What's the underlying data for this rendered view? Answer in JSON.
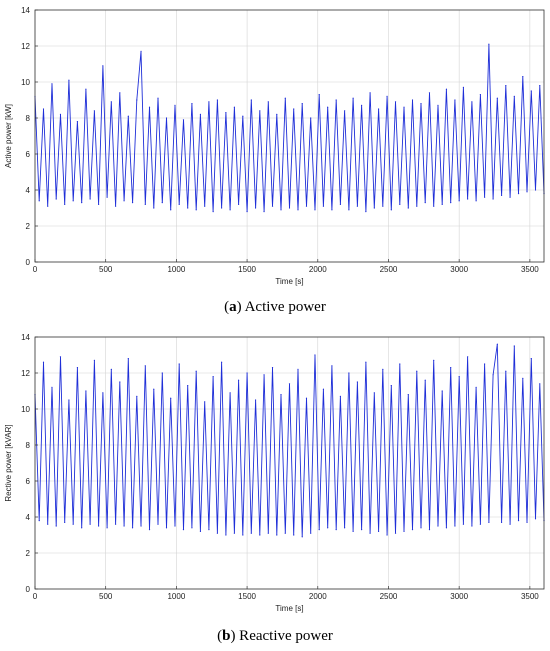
{
  "figure": {
    "caption_a": {
      "open": "(",
      "tag": "a",
      "close": ") Active power"
    },
    "caption_b": {
      "open": "(",
      "tag": "b",
      "close": ") Reactive power"
    }
  },
  "chart_data": [
    {
      "type": "line",
      "title": "",
      "xlabel": "Time [s]",
      "ylabel": "Active power [kW]",
      "xlim": [
        0,
        3600
      ],
      "ylim": [
        0,
        14
      ],
      "xticks": [
        0,
        500,
        1000,
        1500,
        2000,
        2500,
        3000,
        3500
      ],
      "yticks": [
        0,
        2,
        4,
        6,
        8,
        10,
        12,
        14
      ],
      "grid": true,
      "legend": "none",
      "color": "#1f2fd8",
      "series": [
        {
          "x": [
            0,
            30,
            60,
            90,
            120,
            150,
            180,
            210,
            240,
            270,
            300,
            330,
            360,
            390,
            420,
            450,
            480,
            510,
            540,
            570,
            600,
            630,
            660,
            690,
            720,
            750,
            780,
            810,
            840,
            870,
            900,
            930,
            960,
            990,
            1020,
            1050,
            1080,
            1110,
            1140,
            1170,
            1200,
            1230,
            1260,
            1290,
            1320,
            1350,
            1380,
            1410,
            1440,
            1470,
            1500,
            1530,
            1560,
            1590,
            1620,
            1650,
            1680,
            1710,
            1740,
            1770,
            1800,
            1830,
            1860,
            1890,
            1920,
            1950,
            1980,
            2010,
            2040,
            2070,
            2100,
            2130,
            2160,
            2190,
            2220,
            2250,
            2280,
            2310,
            2340,
            2370,
            2400,
            2430,
            2460,
            2490,
            2520,
            2550,
            2580,
            2610,
            2640,
            2670,
            2700,
            2730,
            2760,
            2790,
            2820,
            2850,
            2880,
            2910,
            2940,
            2970,
            3000,
            3030,
            3060,
            3090,
            3120,
            3150,
            3180,
            3210,
            3240,
            3270,
            3300,
            3330,
            3360,
            3390,
            3420,
            3450,
            3480,
            3510,
            3540,
            3570,
            3600
          ],
          "y": [
            9.2,
            3.4,
            8.5,
            3.1,
            9.9,
            3.5,
            8.2,
            3.2,
            10.1,
            3.4,
            7.8,
            3.3,
            9.6,
            3.5,
            8.4,
            3.2,
            10.9,
            3.6,
            8.9,
            3.1,
            9.4,
            3.4,
            8.1,
            3.3,
            9.0,
            11.7,
            3.2,
            8.6,
            3.0,
            9.1,
            3.3,
            8.0,
            2.9,
            8.7,
            3.2,
            7.9,
            3.0,
            8.8,
            2.9,
            8.2,
            3.1,
            8.9,
            2.8,
            9.0,
            3.0,
            8.3,
            2.9,
            8.6,
            3.2,
            8.1,
            2.8,
            9.0,
            3.0,
            8.4,
            2.8,
            8.9,
            3.1,
            8.2,
            2.9,
            9.1,
            3.0,
            8.5,
            2.9,
            8.8,
            3.1,
            8.0,
            2.9,
            9.3,
            3.1,
            8.6,
            2.9,
            9.0,
            3.2,
            8.4,
            2.9,
            9.1,
            3.1,
            8.7,
            2.8,
            9.4,
            3.0,
            8.5,
            3.1,
            9.2,
            2.9,
            8.9,
            3.2,
            8.6,
            3.0,
            9.0,
            3.1,
            8.8,
            3.3,
            9.4,
            3.1,
            8.7,
            3.2,
            9.6,
            3.3,
            9.0,
            3.4,
            9.7,
            3.5,
            8.9,
            3.4,
            9.3,
            3.6,
            12.1,
            3.5,
            9.1,
            3.7,
            9.8,
            3.6,
            9.2,
            3.8,
            10.3,
            3.9,
            9.5,
            4.0,
            9.8,
            3.8
          ]
        }
      ]
    },
    {
      "type": "line",
      "title": "",
      "xlabel": "Time [s]",
      "ylabel": "Rective power [kVAR]",
      "xlim": [
        0,
        3600
      ],
      "ylim": [
        0,
        14
      ],
      "xticks": [
        0,
        500,
        1000,
        1500,
        2000,
        2500,
        3000,
        3500
      ],
      "yticks": [
        0,
        2,
        4,
        6,
        8,
        10,
        12,
        14
      ],
      "grid": true,
      "legend": "none",
      "color": "#1f2fd8",
      "series": [
        {
          "x": [
            0,
            30,
            60,
            90,
            120,
            150,
            180,
            210,
            240,
            270,
            300,
            330,
            360,
            390,
            420,
            450,
            480,
            510,
            540,
            570,
            600,
            630,
            660,
            690,
            720,
            750,
            780,
            810,
            840,
            870,
            900,
            930,
            960,
            990,
            1020,
            1050,
            1080,
            1110,
            1140,
            1170,
            1200,
            1230,
            1260,
            1290,
            1320,
            1350,
            1380,
            1410,
            1440,
            1470,
            1500,
            1530,
            1560,
            1590,
            1620,
            1650,
            1680,
            1710,
            1740,
            1770,
            1800,
            1830,
            1860,
            1890,
            1920,
            1950,
            1980,
            2010,
            2040,
            2070,
            2100,
            2130,
            2160,
            2190,
            2220,
            2250,
            2280,
            2310,
            2340,
            2370,
            2400,
            2430,
            2460,
            2490,
            2520,
            2550,
            2580,
            2610,
            2640,
            2670,
            2700,
            2730,
            2760,
            2790,
            2820,
            2850,
            2880,
            2910,
            2940,
            2970,
            3000,
            3030,
            3060,
            3090,
            3120,
            3150,
            3180,
            3210,
            3240,
            3270,
            3300,
            3330,
            3360,
            3390,
            3420,
            3450,
            3480,
            3510,
            3540,
            3570,
            3600
          ],
          "y": [
            10.8,
            3.8,
            12.6,
            3.6,
            11.2,
            3.5,
            12.9,
            3.7,
            10.5,
            3.6,
            12.3,
            3.4,
            11.0,
            3.6,
            12.7,
            3.5,
            10.9,
            3.4,
            12.2,
            3.6,
            11.5,
            3.5,
            12.8,
            3.4,
            10.7,
            3.5,
            12.4,
            3.3,
            11.1,
            3.6,
            12.0,
            3.4,
            10.6,
            3.5,
            12.5,
            3.3,
            11.3,
            3.4,
            12.1,
            3.2,
            10.4,
            3.3,
            11.8,
            3.1,
            12.6,
            3.0,
            10.9,
            3.1,
            11.6,
            3.0,
            12.0,
            3.1,
            10.5,
            3.0,
            11.9,
            3.1,
            12.3,
            3.0,
            10.8,
            3.1,
            11.4,
            3.0,
            12.2,
            2.9,
            10.6,
            3.1,
            13.0,
            3.3,
            11.1,
            3.4,
            12.4,
            3.3,
            10.7,
            3.4,
            12.0,
            3.2,
            11.5,
            3.3,
            12.6,
            3.1,
            10.9,
            3.2,
            12.2,
            3.0,
            11.3,
            3.1,
            12.5,
            3.2,
            10.8,
            3.3,
            12.1,
            3.4,
            11.6,
            3.3,
            12.7,
            3.5,
            11.0,
            3.4,
            12.3,
            3.5,
            11.8,
            3.6,
            12.9,
            3.5,
            11.2,
            3.6,
            12.5,
            3.7,
            11.9,
            13.6,
            3.7,
            12.1,
            3.6,
            13.5,
            3.8,
            11.7,
            3.7,
            12.8,
            3.9,
            11.4,
            3.8
          ]
        }
      ]
    }
  ]
}
